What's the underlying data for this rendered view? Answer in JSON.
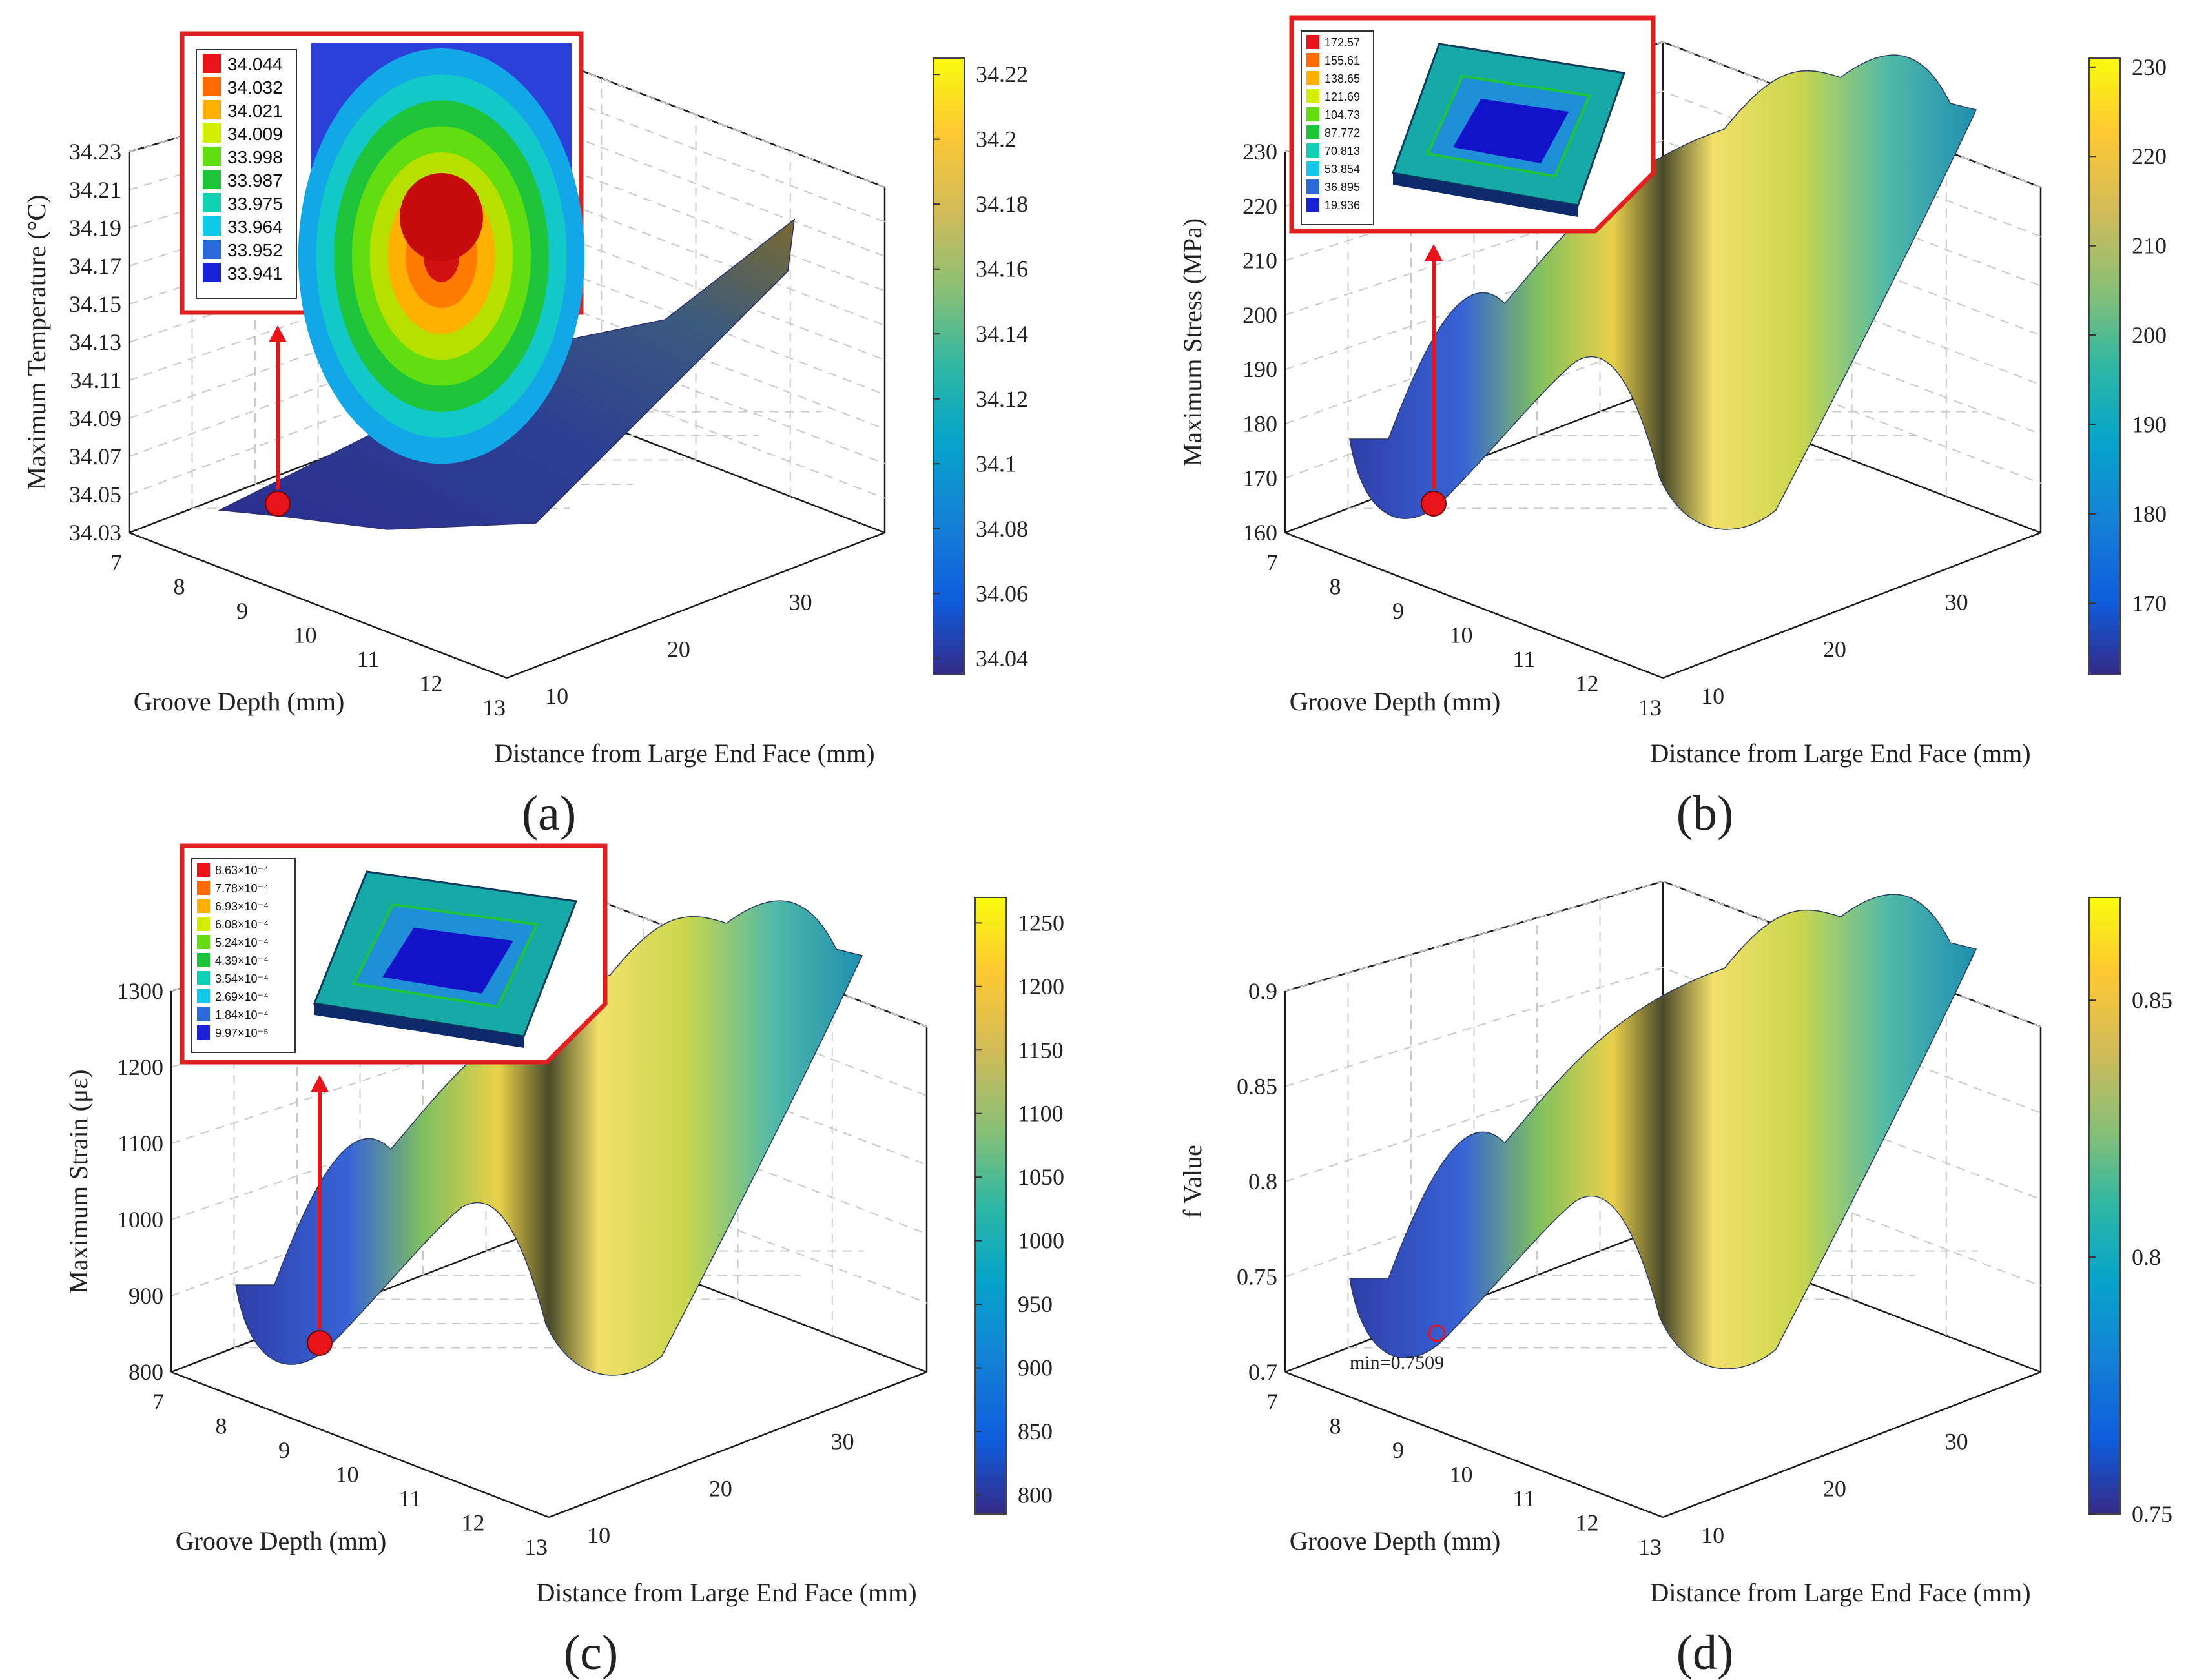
{
  "colors": {
    "parula": [
      "#352a87",
      "#0f5cdd",
      "#1481d6",
      "#06a4ca",
      "#2eb7a4",
      "#87bf77",
      "#d1bb59",
      "#fec832",
      "#f9fb0e"
    ],
    "inset_border": "#e02020",
    "marker": "#e8141a",
    "min_text": "#e8141a"
  },
  "chart_data": [
    {
      "type": "surface",
      "panel_label": "(a)",
      "zlabel": "Maximum Temperature (°C)",
      "xlabel": "Groove Depth (mm)",
      "ylabel": "Distance from Large End Face (mm)",
      "x_ticks": [
        "7",
        "8",
        "9",
        "10",
        "11",
        "12",
        "13"
      ],
      "y_ticks": [
        "10",
        "20",
        "30"
      ],
      "z_ticks": [
        "34.03",
        "34.05",
        "34.07",
        "34.09",
        "34.11",
        "34.13",
        "34.15",
        "34.17",
        "34.19",
        "34.21",
        "34.23"
      ],
      "zlim": [
        34.03,
        34.23
      ],
      "colorbar": {
        "ticks": [
          "34.04",
          "34.06",
          "34.08",
          "34.1",
          "34.12",
          "34.14",
          "34.16",
          "34.18",
          "34.2",
          "34.22"
        ],
        "range": [
          34.035,
          34.225
        ]
      },
      "surface_summary": "rising sheet; minimum near groove depth 7 mm and distance 5 mm, maximum about 34.22 at groove depth 13 mm and distance 35 mm",
      "optimum_marker": {
        "groove_depth": 7,
        "distance": 5,
        "value": 34.044
      },
      "inset": {
        "kind": "temperature contour",
        "legend": [
          "34.044",
          "34.032",
          "34.021",
          "34.009",
          "33.998",
          "33.987",
          "33.975",
          "33.964",
          "33.952",
          "33.941"
        ]
      }
    },
    {
      "type": "surface",
      "panel_label": "(b)",
      "zlabel": "Maximum Stress (MPa)",
      "xlabel": "Groove Depth (mm)",
      "ylabel": "Distance from Large End Face (mm)",
      "x_ticks": [
        "7",
        "8",
        "9",
        "10",
        "11",
        "12",
        "13"
      ],
      "y_ticks": [
        "10",
        "20",
        "30"
      ],
      "z_ticks": [
        "160",
        "170",
        "180",
        "190",
        "200",
        "210",
        "220",
        "230"
      ],
      "zlim": [
        160,
        230
      ],
      "colorbar": {
        "ticks": [
          "170",
          "180",
          "190",
          "200",
          "210",
          "220",
          "230"
        ],
        "range": [
          162,
          231
        ]
      },
      "surface_summary": "wavy surface with ridges near groove depth 9 mm and 11.5 mm, trough near 10 mm; increases with distance",
      "optimum_marker": {
        "groove_depth": 7.5,
        "distance": 5,
        "value": 166
      },
      "inset": {
        "kind": "stress contour (3D part)",
        "legend": [
          "172.57",
          "155.61",
          "138.65",
          "121.69",
          "104.73",
          "87.772",
          "70.813",
          "53.854",
          "36.895",
          "19.936"
        ]
      }
    },
    {
      "type": "surface",
      "panel_label": "(c)",
      "zlabel": "Maximum Strain (με)",
      "xlabel": "Groove Depth (mm)",
      "ylabel": "Distance from Large End Face (mm)",
      "x_ticks": [
        "7",
        "8",
        "9",
        "10",
        "11",
        "12",
        "13"
      ],
      "y_ticks": [
        "10",
        "20",
        "30"
      ],
      "z_ticks": [
        "800",
        "900",
        "1000",
        "1100",
        "1200",
        "1300"
      ],
      "zlim": [
        800,
        1300
      ],
      "colorbar": {
        "ticks": [
          "800",
          "850",
          "900",
          "950",
          "1000",
          "1050",
          "1100",
          "1150",
          "1200",
          "1250"
        ],
        "range": [
          785,
          1270
        ]
      },
      "surface_summary": "wavy surface with ridges near groove depth 9 mm and 11.5 mm; strain rises with distance",
      "optimum_marker": {
        "groove_depth": 7.5,
        "distance": 5,
        "value": 850
      },
      "inset": {
        "kind": "strain contour (3D part)",
        "legend": [
          "8.63×10⁻⁴",
          "7.78×10⁻⁴",
          "6.93×10⁻⁴",
          "6.08×10⁻⁴",
          "5.24×10⁻⁴",
          "4.39×10⁻⁴",
          "3.54×10⁻⁴",
          "2.69×10⁻⁴",
          "1.84×10⁻⁴",
          "9.97×10⁻⁵"
        ]
      }
    },
    {
      "type": "surface",
      "panel_label": "(d)",
      "zlabel": "f Value",
      "xlabel": "Groove Depth (mm)",
      "ylabel": "Distance from Large End Face (mm)",
      "x_ticks": [
        "7",
        "8",
        "9",
        "10",
        "11",
        "12",
        "13"
      ],
      "y_ticks": [
        "10",
        "20",
        "30"
      ],
      "z_ticks": [
        "0.7",
        "0.75",
        "0.8",
        "0.85",
        "0.9"
      ],
      "zlim": [
        0.7,
        0.9
      ],
      "colorbar": {
        "ticks": [
          "0.75",
          "0.8",
          "0.85"
        ],
        "range": [
          0.75,
          0.87
        ]
      },
      "surface_summary": "wavy surface similar to stress; minimum marked near groove depth 7.5 mm",
      "min_annotation": "min=0.7509",
      "optimum_marker": {
        "groove_depth": 7.5,
        "distance": 5,
        "value": 0.7509
      }
    }
  ]
}
